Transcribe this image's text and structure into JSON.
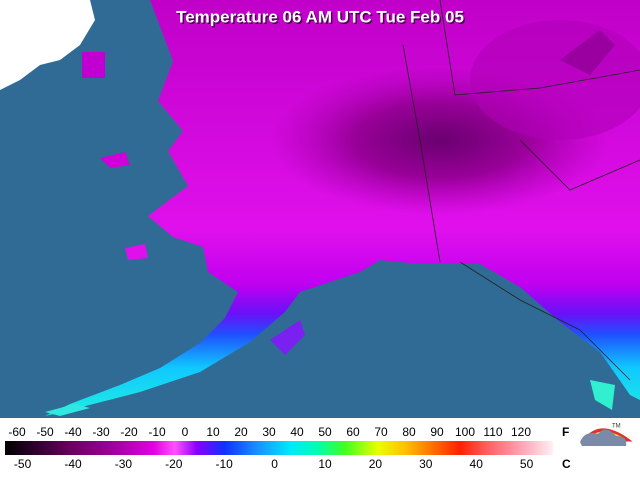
{
  "title": "Temperature 06 AM UTC Tue Feb 05",
  "legend": {
    "fahrenheit_labels": [
      -60,
      -50,
      -40,
      -30,
      -20,
      -10,
      0,
      10,
      20,
      30,
      40,
      50,
      60,
      70,
      80,
      90,
      100,
      110,
      120
    ],
    "fahrenheit_unit": "F",
    "celsius_labels": [
      -50,
      -40,
      -30,
      -20,
      -10,
      0,
      10,
      20,
      30,
      40,
      50
    ],
    "celsius_unit": "C"
  },
  "logo_mark": "TM"
}
